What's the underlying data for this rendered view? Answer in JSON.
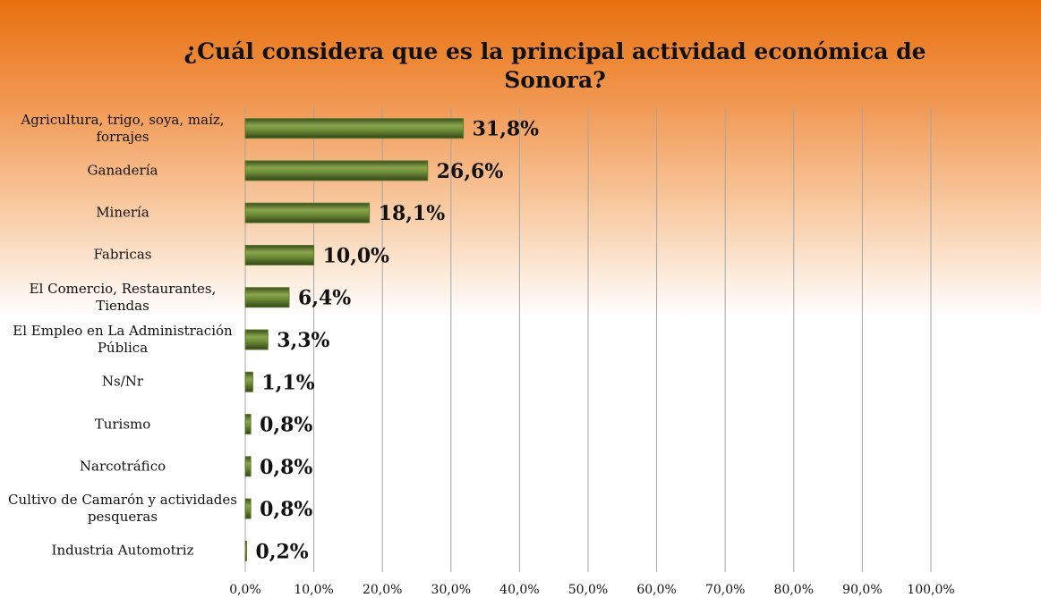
{
  "chart_data": {
    "type": "bar",
    "orientation": "horizontal",
    "title": "¿Cuál considera que es la principal actividad económica de Sonora?",
    "categories": [
      "Agricultura, trigo, soya, maíz, forrajes",
      "Ganadería",
      "Minería",
      "Fabricas",
      "El Comercio, Restaurantes, Tiendas",
      "El Empleo en La Administración Pública",
      "Ns/Nr",
      "Turismo",
      "Narcotráfico",
      "Cultivo de Camarón y actividades pesqueras",
      "Industria Automotriz"
    ],
    "values": [
      31.8,
      26.6,
      18.1,
      10.0,
      6.4,
      3.3,
      1.1,
      0.8,
      0.8,
      0.8,
      0.2
    ],
    "value_labels": [
      "31,8%",
      "26,6%",
      "18,1%",
      "10,0%",
      "6,4%",
      "3,3%",
      "1,1%",
      "0,8%",
      "0,8%",
      "0,8%",
      "0,2%"
    ],
    "color": "#5f7a2e",
    "xlim": [
      0,
      100
    ],
    "xticks": [
      {
        "value": 0,
        "label": "0,0%"
      },
      {
        "value": 10,
        "label": "10,0%"
      },
      {
        "value": 20,
        "label": "20,0%"
      },
      {
        "value": 30,
        "label": "30,0%"
      },
      {
        "value": 40,
        "label": "40,0%"
      },
      {
        "value": 50,
        "label": "50,0%"
      },
      {
        "value": 60,
        "label": "60,0%"
      },
      {
        "value": 70,
        "label": "70,0%"
      },
      {
        "value": 80,
        "label": "80,0%"
      },
      {
        "value": 90,
        "label": "90,0%"
      },
      {
        "value": 100,
        "label": "100,0%"
      }
    ],
    "grid": true
  }
}
